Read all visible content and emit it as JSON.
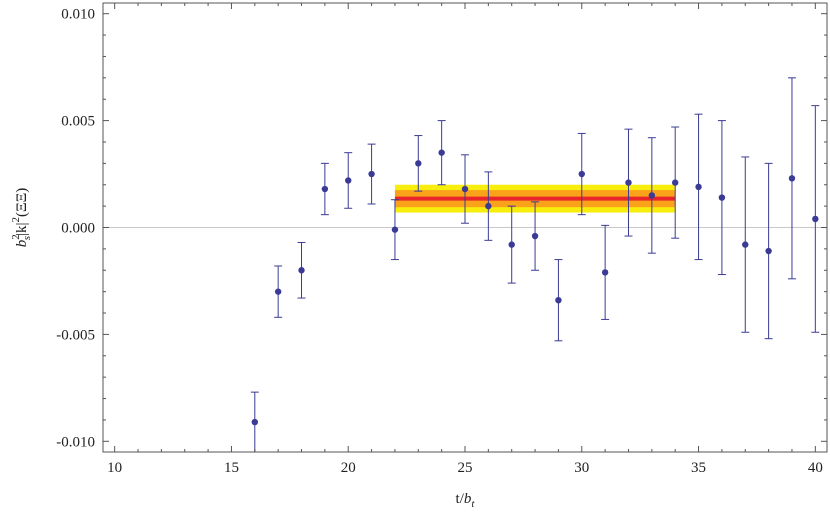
{
  "chart_data": {
    "type": "scatter",
    "title": "",
    "xlabel": "t/b_t",
    "ylabel": "b_s^2|k|^2(ΞΞ)",
    "xlim": [
      9.5,
      40.5
    ],
    "ylim": [
      -0.0105,
      0.0105
    ],
    "x_ticks": [
      10,
      15,
      20,
      25,
      30,
      35,
      40
    ],
    "x_tick_labels": [
      "10",
      "15",
      "20",
      "25",
      "30",
      "35",
      "40"
    ],
    "y_ticks": [
      -0.01,
      -0.005,
      0.0,
      0.005,
      0.01
    ],
    "y_tick_labels": [
      "-0.010",
      "-0.005",
      "0.000",
      "0.005",
      "0.010"
    ],
    "grid": false,
    "zero_line": true,
    "points": [
      {
        "x": 16,
        "y": -0.0091,
        "err": 0.0014
      },
      {
        "x": 17,
        "y": -0.003,
        "err": 0.0012
      },
      {
        "x": 18,
        "y": -0.002,
        "err": 0.0013
      },
      {
        "x": 19,
        "y": 0.0018,
        "err": 0.0012
      },
      {
        "x": 20,
        "y": 0.0022,
        "err": 0.0013
      },
      {
        "x": 21,
        "y": 0.0025,
        "err": 0.0014
      },
      {
        "x": 22,
        "y": -0.0001,
        "err": 0.0014
      },
      {
        "x": 23,
        "y": 0.003,
        "err": 0.0013
      },
      {
        "x": 24,
        "y": 0.0035,
        "err": 0.0015
      },
      {
        "x": 25,
        "y": 0.0018,
        "err": 0.0016
      },
      {
        "x": 26,
        "y": 0.001,
        "err": 0.0016
      },
      {
        "x": 27,
        "y": -0.0008,
        "err": 0.0018
      },
      {
        "x": 28,
        "y": -0.0004,
        "err": 0.0016
      },
      {
        "x": 29,
        "y": -0.0034,
        "err": 0.0019
      },
      {
        "x": 30,
        "y": 0.0025,
        "err": 0.0019
      },
      {
        "x": 31,
        "y": -0.0021,
        "err": 0.0022
      },
      {
        "x": 32,
        "y": 0.0021,
        "err": 0.0025
      },
      {
        "x": 33,
        "y": 0.0015,
        "err": 0.0027
      },
      {
        "x": 34,
        "y": 0.0021,
        "err": 0.0026
      },
      {
        "x": 35,
        "y": 0.0019,
        "err": 0.0034
      },
      {
        "x": 36,
        "y": 0.0014,
        "err": 0.0036
      },
      {
        "x": 37,
        "y": -0.0008,
        "err": 0.0041
      },
      {
        "x": 38,
        "y": -0.0011,
        "err": 0.0041
      },
      {
        "x": 39,
        "y": 0.0023,
        "err": 0.0047
      },
      {
        "x": 40,
        "y": 0.0004,
        "err": 0.0053
      }
    ],
    "fit": {
      "x_start": 22,
      "x_end": 34,
      "value": 0.00135,
      "inner_band": [
        0.00095,
        0.00175
      ],
      "outer_band": [
        0.0007,
        0.002
      ]
    },
    "colors": {
      "points": "#3b3b96",
      "fit_line": "#e8262a",
      "inner_band": "#f9a21a",
      "outer_band": "#f7ee0d",
      "zero_line": "#c8c8c8",
      "frame": "#555555"
    }
  }
}
